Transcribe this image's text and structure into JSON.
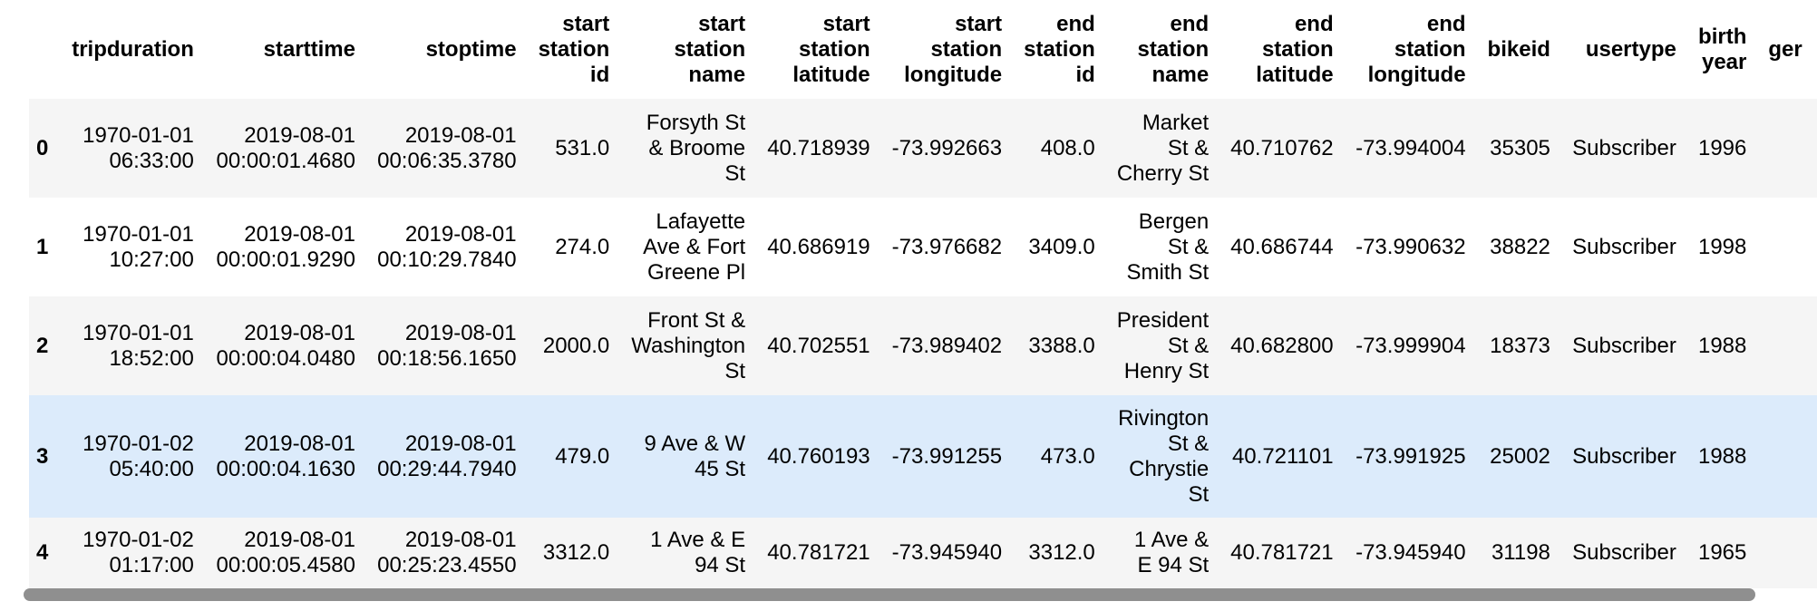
{
  "table": {
    "columns": [
      "tripduration",
      "starttime",
      "stoptime",
      [
        "start",
        "station",
        "id"
      ],
      [
        "start",
        "station",
        "name"
      ],
      [
        "start",
        "station",
        "latitude"
      ],
      [
        "start",
        "station",
        "longitude"
      ],
      [
        "end",
        "station",
        "id"
      ],
      [
        "end",
        "station",
        "name"
      ],
      [
        "end",
        "station",
        "latitude"
      ],
      [
        "end",
        "station",
        "longitude"
      ],
      "bikeid",
      "usertype",
      [
        "birth",
        "year"
      ],
      "ger"
    ],
    "rows": [
      {
        "index": "0",
        "tripduration": [
          "1970-01-01",
          "06:33:00"
        ],
        "starttime": [
          "2019-08-01",
          "00:00:01.4680"
        ],
        "stoptime": [
          "2019-08-01",
          "00:06:35.3780"
        ],
        "start_station_id": "531.0",
        "start_station_name": [
          "Forsyth St",
          "& Broome",
          "St"
        ],
        "start_station_latitude": "40.718939",
        "start_station_longitude": "-73.992663",
        "end_station_id": "408.0",
        "end_station_name": [
          "Market",
          "St &",
          "Cherry St"
        ],
        "end_station_latitude": "40.710762",
        "end_station_longitude": "-73.994004",
        "bikeid": "35305",
        "usertype": "Subscriber",
        "birth_year": "1996"
      },
      {
        "index": "1",
        "tripduration": [
          "1970-01-01",
          "10:27:00"
        ],
        "starttime": [
          "2019-08-01",
          "00:00:01.9290"
        ],
        "stoptime": [
          "2019-08-01",
          "00:10:29.7840"
        ],
        "start_station_id": "274.0",
        "start_station_name": [
          "Lafayette",
          "Ave & Fort",
          "Greene Pl"
        ],
        "start_station_latitude": "40.686919",
        "start_station_longitude": "-73.976682",
        "end_station_id": "3409.0",
        "end_station_name": [
          "Bergen",
          "St &",
          "Smith St"
        ],
        "end_station_latitude": "40.686744",
        "end_station_longitude": "-73.990632",
        "bikeid": "38822",
        "usertype": "Subscriber",
        "birth_year": "1998"
      },
      {
        "index": "2",
        "tripduration": [
          "1970-01-01",
          "18:52:00"
        ],
        "starttime": [
          "2019-08-01",
          "00:00:04.0480"
        ],
        "stoptime": [
          "2019-08-01",
          "00:18:56.1650"
        ],
        "start_station_id": "2000.0",
        "start_station_name": [
          "Front St &",
          "Washington",
          "St"
        ],
        "start_station_latitude": "40.702551",
        "start_station_longitude": "-73.989402",
        "end_station_id": "3388.0",
        "end_station_name": [
          "President",
          "St &",
          "Henry St"
        ],
        "end_station_latitude": "40.682800",
        "end_station_longitude": "-73.999904",
        "bikeid": "18373",
        "usertype": "Subscriber",
        "birth_year": "1988"
      },
      {
        "index": "3",
        "tripduration": [
          "1970-01-02",
          "05:40:00"
        ],
        "starttime": [
          "2019-08-01",
          "00:00:04.1630"
        ],
        "stoptime": [
          "2019-08-01",
          "00:29:44.7940"
        ],
        "start_station_id": "479.0",
        "start_station_name": [
          "9 Ave & W",
          "45 St"
        ],
        "start_station_latitude": "40.760193",
        "start_station_longitude": "-73.991255",
        "end_station_id": "473.0",
        "end_station_name": [
          "Rivington",
          "St &",
          "Chrystie",
          "St"
        ],
        "end_station_latitude": "40.721101",
        "end_station_longitude": "-73.991925",
        "bikeid": "25002",
        "usertype": "Subscriber",
        "birth_year": "1988"
      },
      {
        "index": "4",
        "tripduration": [
          "1970-01-02",
          "01:17:00"
        ],
        "starttime": [
          "2019-08-01",
          "00:00:05.4580"
        ],
        "stoptime": [
          "2019-08-01",
          "00:25:23.4550"
        ],
        "start_station_id": "3312.0",
        "start_station_name": [
          "1 Ave & E",
          "94 St"
        ],
        "start_station_latitude": "40.781721",
        "start_station_longitude": "-73.945940",
        "end_station_id": "3312.0",
        "end_station_name": [
          "1 Ave &",
          "E 94 St"
        ],
        "end_station_latitude": "40.781721",
        "end_station_longitude": "-73.945940",
        "bikeid": "31198",
        "usertype": "Subscriber",
        "birth_year": "1965"
      }
    ],
    "highlighted_row": "3"
  },
  "colors": {
    "row_alt": "#f5f5f5",
    "row_hover": "#dcebfb",
    "scrollbar_thumb": "#8f8f8f"
  }
}
